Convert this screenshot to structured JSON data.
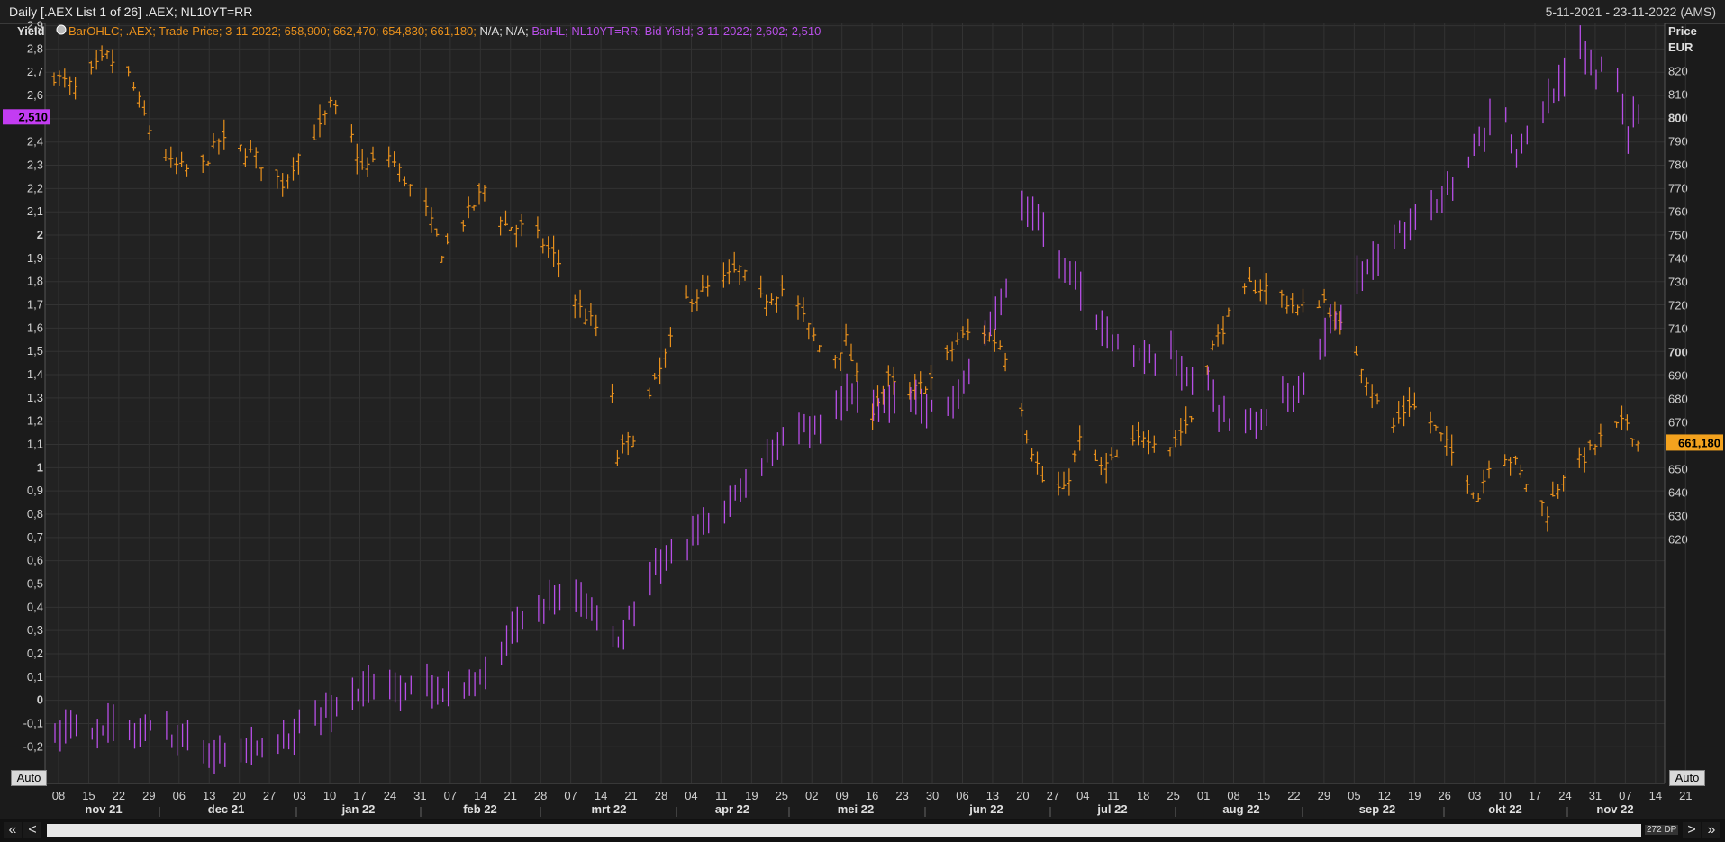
{
  "header": {
    "title": "Daily [.AEX List 1 of 26] .AEX; NL10YT=RR",
    "date_range": "5-11-2021 - 23-11-2022 (AMS)"
  },
  "legend": {
    "ohlc_text": "BarOHLC; .AEX; Trade Price; 3-11-2022; 658,900; 662,470; 654,830; 661,180;",
    "na_text": " N/A; N/A;",
    "hl_text": " BarHL; NL10YT=RR; Bid Yield; 3-11-2022; 2,602; 2,510"
  },
  "colors": {
    "ohlc": "#e8901c",
    "hl": "#b84fe8",
    "background": "#222222",
    "grid": "#333333"
  },
  "axes": {
    "left_title": "Yield",
    "right_title_1": "Price",
    "right_title_2": "EUR",
    "left_badge": "2,510",
    "right_badge": "661,180",
    "auto_left": "Auto",
    "auto_right": "Auto"
  },
  "scrollbar": {
    "label": "272 DP",
    "first": "«",
    "prev": "<",
    "next": ">",
    "last": "»"
  },
  "chart_data": {
    "type": "bar",
    "left_axis": {
      "title": "Yield",
      "ylim": [
        -0.3,
        2.95
      ],
      "ticks": [
        "2,9",
        "2,8",
        "2,7",
        "2,6",
        "2,5",
        "2,4",
        "2,3",
        "2,2",
        "2,1",
        "2",
        "1,9",
        "1,8",
        "1,7",
        "1,6",
        "1,5",
        "1,4",
        "1,3",
        "1,2",
        "1,1",
        "1",
        "0,9",
        "0,8",
        "0,7",
        "0,6",
        "0,5",
        "0,4",
        "0,3",
        "0,2",
        "0,1",
        "0",
        "-0,1",
        "-0,2"
      ],
      "tick_values": [
        2.9,
        2.8,
        2.7,
        2.6,
        2.5,
        2.4,
        2.3,
        2.2,
        2.1,
        2.0,
        1.9,
        1.8,
        1.7,
        1.6,
        1.5,
        1.4,
        1.3,
        1.2,
        1.1,
        1.0,
        0.9,
        0.8,
        0.7,
        0.6,
        0.5,
        0.4,
        0.3,
        0.2,
        0.1,
        0.0,
        -0.1,
        -0.2
      ]
    },
    "right_axis": {
      "title": "Price EUR",
      "ylim": [
        612,
        830
      ],
      "ticks": [
        "820",
        "810",
        "800",
        "790",
        "780",
        "770",
        "760",
        "750",
        "740",
        "730",
        "720",
        "710",
        "700",
        "690",
        "680",
        "670",
        "660",
        "650",
        "640",
        "630",
        "620"
      ],
      "tick_values": [
        820,
        810,
        800,
        790,
        780,
        770,
        760,
        750,
        740,
        730,
        720,
        710,
        700,
        690,
        680,
        670,
        660,
        650,
        640,
        630,
        620
      ]
    },
    "x_axis": {
      "day_ticks": [
        "08",
        "15",
        "22",
        "29",
        "06",
        "13",
        "20",
        "27",
        "03",
        "10",
        "17",
        "24",
        "31",
        "07",
        "14",
        "21",
        "28",
        "07",
        "14",
        "21",
        "28",
        "04",
        "11",
        "19",
        "25",
        "02",
        "09",
        "16",
        "23",
        "30",
        "06",
        "13",
        "20",
        "27",
        "04",
        "11",
        "18",
        "25",
        "01",
        "08",
        "15",
        "22",
        "29",
        "05",
        "12",
        "19",
        "26",
        "03",
        "10",
        "17",
        "24",
        "31",
        "07",
        "14",
        "21"
      ],
      "months": [
        "nov 21",
        "dec 21",
        "jan 22",
        "feb 22",
        "mrt 22",
        "apr 22",
        "mei 22",
        "jun 22",
        "jul 22",
        "aug 22",
        "sep 22",
        "okt 22",
        "nov 22"
      ]
    },
    "series": [
      {
        "name": ".AEX Trade Price (OHLC)",
        "axis": "right",
        "anchors": [
          [
            0,
            818
          ],
          [
            4,
            812
          ],
          [
            10,
            826
          ],
          [
            14,
            818
          ],
          [
            18,
            795
          ],
          [
            22,
            780
          ],
          [
            27,
            776
          ],
          [
            31,
            790
          ],
          [
            37,
            785
          ],
          [
            43,
            772
          ],
          [
            47,
            788
          ],
          [
            50,
            795
          ],
          [
            52,
            805
          ],
          [
            55,
            798
          ],
          [
            58,
            778
          ],
          [
            63,
            784
          ],
          [
            70,
            760
          ],
          [
            73,
            743
          ],
          [
            76,
            752
          ],
          [
            81,
            770
          ],
          [
            85,
            754
          ],
          [
            90,
            752
          ],
          [
            95,
            738
          ],
          [
            99,
            718
          ],
          [
            104,
            705
          ],
          [
            106,
            655
          ],
          [
            110,
            668
          ],
          [
            114,
            692
          ],
          [
            119,
            722
          ],
          [
            124,
            728
          ],
          [
            129,
            735
          ],
          [
            133,
            722
          ],
          [
            138,
            728
          ],
          [
            142,
            710
          ],
          [
            146,
            695
          ],
          [
            149,
            705
          ],
          [
            153,
            672
          ],
          [
            157,
            688
          ],
          [
            160,
            680
          ],
          [
            166,
            690
          ],
          [
            170,
            705
          ],
          [
            174,
            710
          ],
          [
            178,
            703
          ],
          [
            181,
            690
          ],
          [
            183,
            665
          ],
          [
            186,
            645
          ],
          [
            190,
            640
          ],
          [
            193,
            662
          ],
          [
            197,
            650
          ],
          [
            202,
            657
          ],
          [
            205,
            665
          ],
          [
            210,
            660
          ],
          [
            214,
            672
          ],
          [
            218,
            702
          ],
          [
            221,
            715
          ],
          [
            225,
            728
          ],
          [
            229,
            727
          ],
          [
            234,
            718
          ],
          [
            239,
            722
          ],
          [
            242,
            710
          ],
          [
            245,
            700
          ],
          [
            249,
            678
          ],
          [
            252,
            668
          ],
          [
            255,
            678
          ],
          [
            259,
            670
          ],
          [
            262,
            660
          ],
          [
            265,
            650
          ],
          [
            268,
            638
          ],
          [
            271,
            660
          ],
          [
            275,
            652
          ],
          [
            278,
            640
          ],
          [
            281,
            632
          ],
          [
            284,
            648
          ],
          [
            288,
            655
          ],
          [
            292,
            665
          ],
          [
            296,
            670
          ],
          [
            298,
            661
          ]
        ]
      },
      {
        "name": "NL10YT=RR Bid Yield (HL)",
        "axis": "left",
        "anchors": [
          [
            0,
            -0.14
          ],
          [
            10,
            -0.11
          ],
          [
            14,
            -0.15
          ],
          [
            19,
            -0.12
          ],
          [
            23,
            -0.17
          ],
          [
            30,
            -0.21
          ],
          [
            35,
            -0.21
          ],
          [
            40,
            -0.22
          ],
          [
            43,
            -0.17
          ],
          [
            47,
            -0.11
          ],
          [
            51,
            -0.06
          ],
          [
            55,
            0.02
          ],
          [
            60,
            0.06
          ],
          [
            65,
            0.04
          ],
          [
            70,
            0.07
          ],
          [
            75,
            0.03
          ],
          [
            80,
            0.08
          ],
          [
            85,
            0.28
          ],
          [
            90,
            0.4
          ],
          [
            95,
            0.44
          ],
          [
            100,
            0.42
          ],
          [
            103,
            0.33
          ],
          [
            106,
            0.25
          ],
          [
            110,
            0.46
          ],
          [
            114,
            0.58
          ],
          [
            120,
            0.7
          ],
          [
            124,
            0.78
          ],
          [
            129,
            0.9
          ],
          [
            134,
            1.05
          ],
          [
            138,
            1.14
          ],
          [
            143,
            1.18
          ],
          [
            146,
            1.23
          ],
          [
            150,
            1.33
          ],
          [
            155,
            1.25
          ],
          [
            159,
            1.32
          ],
          [
            164,
            1.27
          ],
          [
            168,
            1.24
          ],
          [
            172,
            1.43
          ],
          [
            176,
            1.6
          ],
          [
            180,
            1.8
          ],
          [
            182,
            2.13
          ],
          [
            186,
            2.02
          ],
          [
            191,
            1.82
          ],
          [
            195,
            1.66
          ],
          [
            200,
            1.55
          ],
          [
            205,
            1.45
          ],
          [
            209,
            1.5
          ],
          [
            212,
            1.42
          ],
          [
            216,
            1.4
          ],
          [
            219,
            1.25
          ],
          [
            223,
            1.15
          ],
          [
            227,
            1.22
          ],
          [
            231,
            1.28
          ],
          [
            236,
            1.38
          ],
          [
            240,
            1.6
          ],
          [
            244,
            1.8
          ],
          [
            248,
            1.86
          ],
          [
            252,
            1.98
          ],
          [
            256,
            2.08
          ],
          [
            260,
            2.15
          ],
          [
            264,
            2.25
          ],
          [
            269,
            2.45
          ],
          [
            272,
            2.6
          ],
          [
            275,
            2.32
          ],
          [
            280,
            2.55
          ],
          [
            284,
            2.7
          ],
          [
            287,
            2.8
          ],
          [
            290,
            2.68
          ],
          [
            293,
            2.82
          ],
          [
            296,
            2.45
          ],
          [
            299,
            2.56
          ]
        ]
      }
    ]
  }
}
